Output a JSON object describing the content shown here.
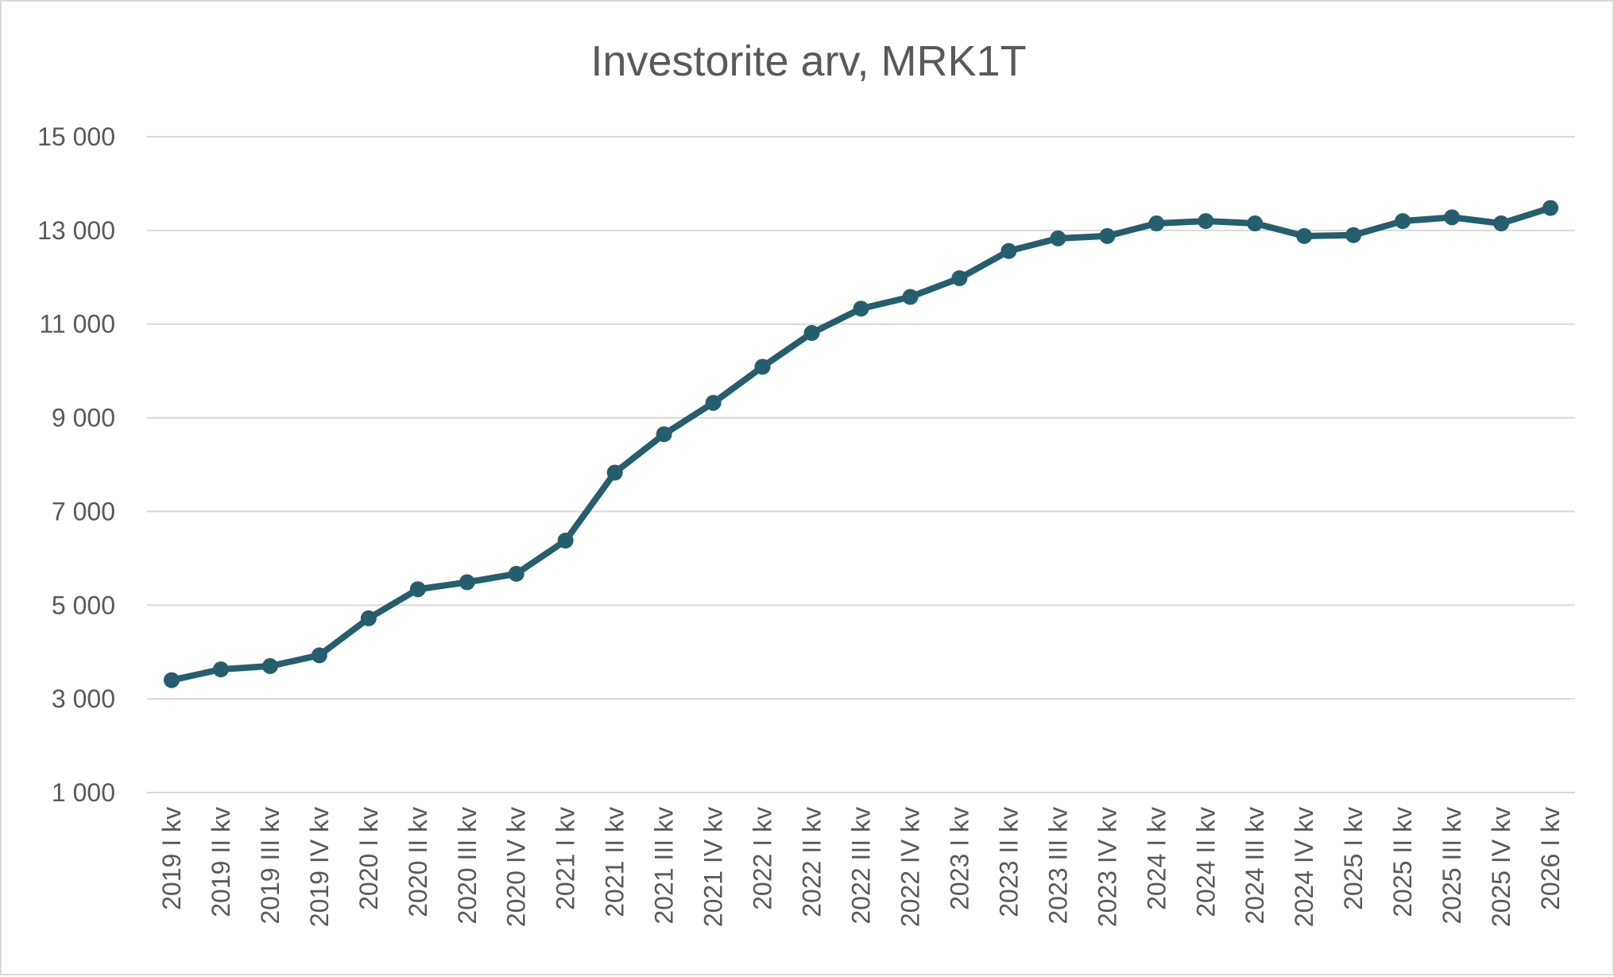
{
  "chart_data": {
    "type": "line",
    "title": "Investorite arv, MRK1T",
    "xlabel": "",
    "ylabel": "",
    "ylim": [
      1000,
      15000
    ],
    "yticks": [
      1000,
      3000,
      5000,
      7000,
      9000,
      11000,
      13000,
      15000
    ],
    "ytick_labels": [
      "1 000",
      "3 000",
      "5 000",
      "7 000",
      "9 000",
      "11 000",
      "13 000",
      "15 000"
    ],
    "grid": true,
    "legend": "none",
    "color": "#255E6E",
    "categories": [
      "2019 I kv",
      "2019 II kv",
      "2019 III kv",
      "2019 IV kv",
      "2020 I kv",
      "2020 II kv",
      "2020 III kv",
      "2020 IV kv",
      "2021 I kv",
      "2021 II kv",
      "2021 III kv",
      "2021 IV kv",
      "2022 I kv",
      "2022 II kv",
      "2022 III kv",
      "2022 IV kv",
      "2023 I kv",
      "2023 II kv",
      "2023 III kv",
      "2023 IV kv",
      "2024 I kv",
      "2024 II kv",
      "2024 III kv",
      "2024 IV kv",
      "2025 I kv",
      "2025 II kv",
      "2025 III kv",
      "2025 IV kv",
      "2026 I kv"
    ],
    "series": [
      {
        "values": [
          3400,
          3630,
          3700,
          3930,
          4720,
          5340,
          5490,
          5670,
          6380,
          7830,
          8650,
          9320,
          10090,
          10810,
          11330,
          11580,
          11980,
          12560,
          12830,
          12880,
          13150,
          13200,
          13150,
          12880,
          12900,
          13200,
          13280,
          13150,
          13480
        ]
      }
    ]
  }
}
